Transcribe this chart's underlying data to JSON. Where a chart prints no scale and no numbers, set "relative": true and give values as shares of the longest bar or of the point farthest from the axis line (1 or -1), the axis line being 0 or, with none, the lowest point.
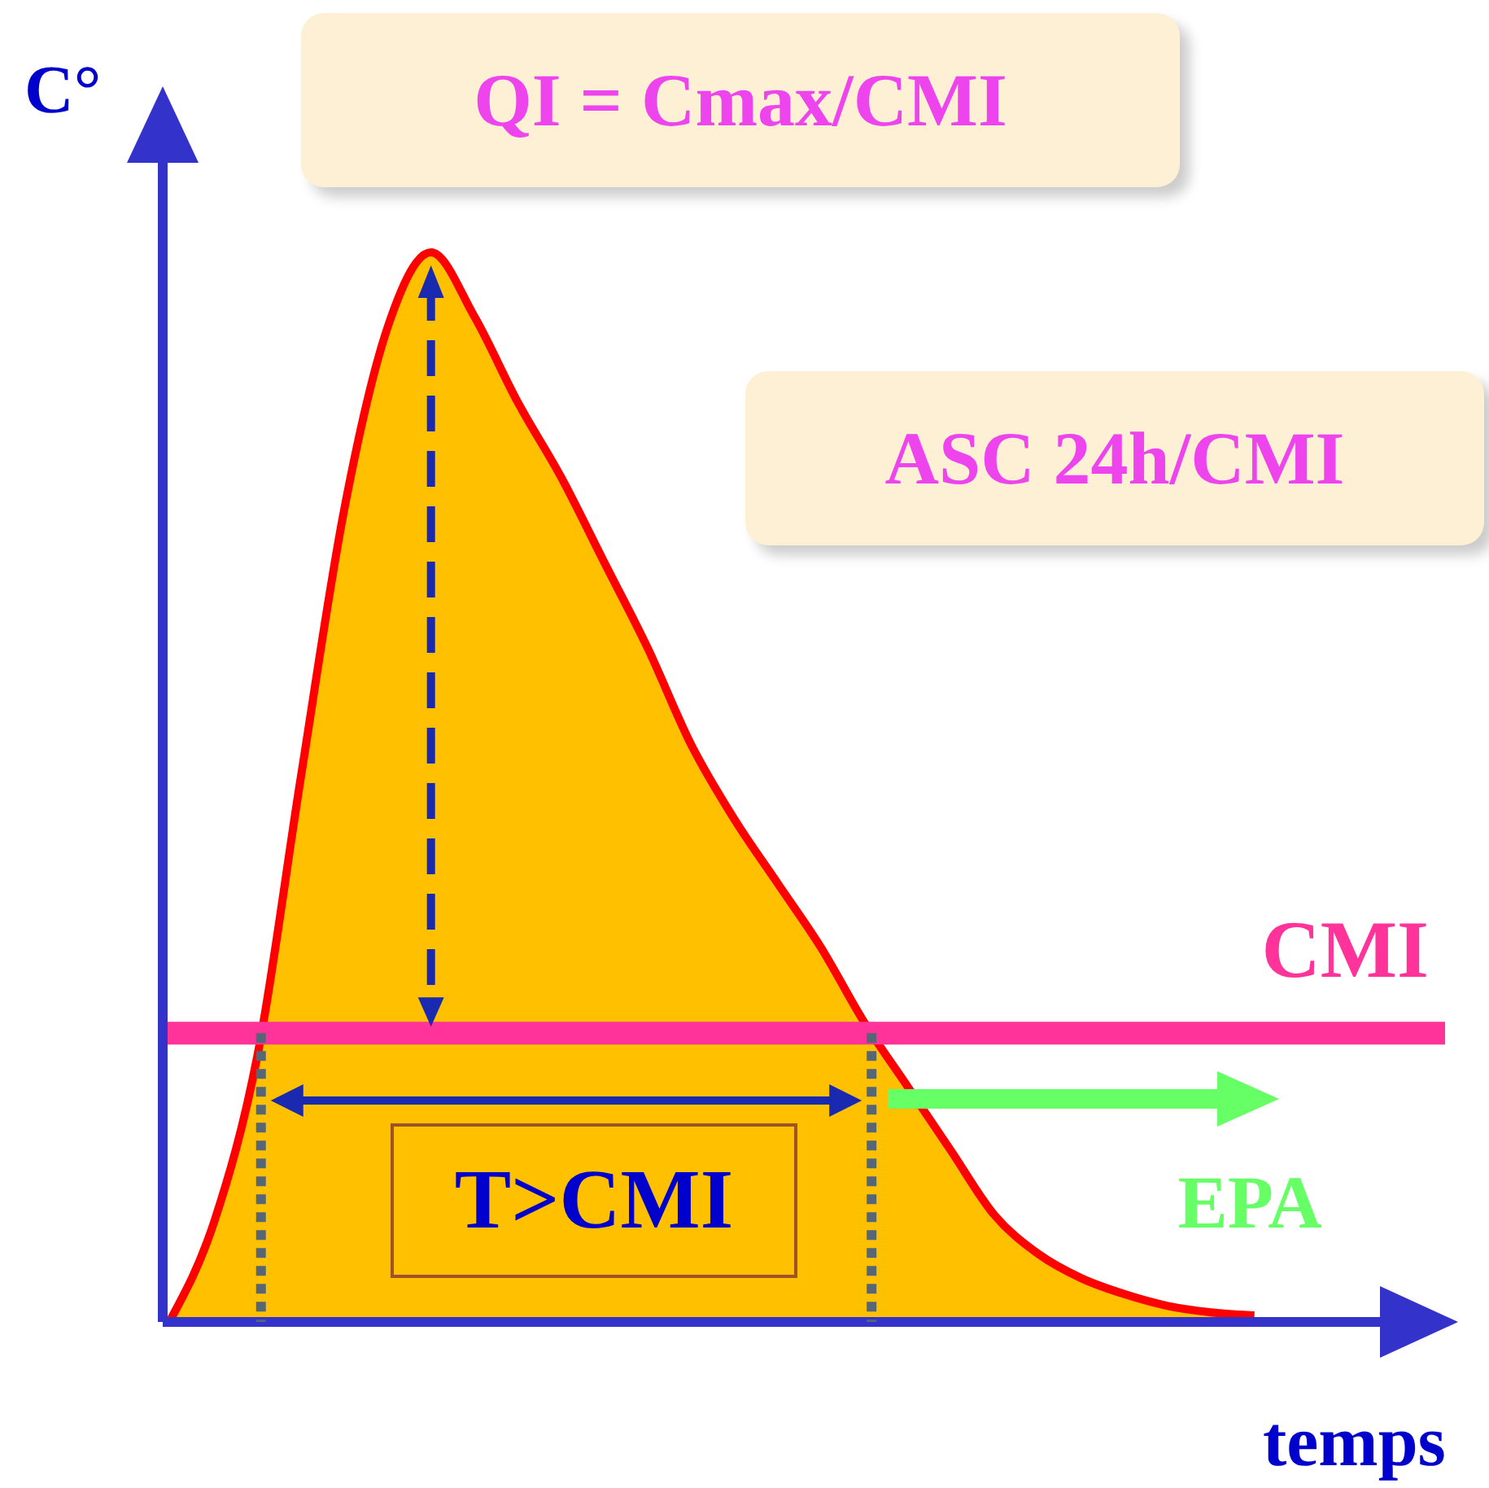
{
  "chart_data": {
    "type": "area",
    "title": "QI = Cmax/CMI",
    "xlabel": "temps",
    "ylabel": "C°",
    "relative": true,
    "grid": false,
    "legend": false,
    "categories": [
      null,
      null,
      null,
      null,
      null,
      null,
      null,
      null,
      null,
      null,
      null,
      null,
      null,
      null,
      null,
      null,
      null,
      null,
      null,
      null,
      null,
      null,
      null,
      null,
      null,
      null
    ],
    "series": [
      {
        "color": "#ffc000",
        "values": [
          0.003,
          0.094,
          0.25,
          0.51,
          0.76,
          0.93,
          1,
          0.94,
          0.86,
          0.79,
          0.71,
          0.63,
          0.54,
          0.47,
          0.41,
          0.35,
          0.28,
          0.22,
          0.16,
          0.1,
          0.064,
          0.041,
          0.026,
          0.015,
          0.009,
          0.006
        ]
      }
    ],
    "ref_lines": [
      {
        "axis": "y",
        "value": 0.27,
        "label": "CMI",
        "color": "#ff3399"
      }
    ],
    "annotations": [
      "ASC 24h/CMI",
      "T>CMI",
      "EPA"
    ]
  }
}
